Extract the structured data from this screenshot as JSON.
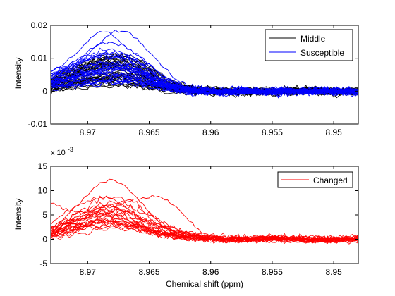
{
  "chart_data": [
    {
      "type": "line",
      "title": "",
      "xlabel": "",
      "ylabel": "Intensity",
      "exponent_label": "",
      "xlim": [
        8.973,
        8.948
      ],
      "ylim": [
        -0.01,
        0.02
      ],
      "x_reversed": true,
      "xticks": [
        8.97,
        8.965,
        8.96,
        8.955,
        8.95
      ],
      "xtick_labels": [
        "8.97",
        "8.965",
        "8.96",
        "8.955",
        "8.95"
      ],
      "yticks": [
        -0.01,
        0,
        0.01,
        0.02
      ],
      "ytick_labels": [
        "-0.01",
        "0",
        "0.01",
        "0.02"
      ],
      "legend": {
        "placement": "top-right",
        "entries": [
          "Middle",
          "Susceptible"
        ]
      },
      "series": [
        {
          "name": "Middle",
          "color": "#000000",
          "count": 40,
          "x": [
            8.973,
            8.972,
            8.971,
            8.97,
            8.969,
            8.968,
            8.967,
            8.966,
            8.965,
            8.964,
            8.963,
            8.962,
            8.961,
            8.96,
            8.959,
            8.958,
            8.957,
            8.956,
            8.955,
            8.954,
            8.953,
            8.952,
            8.951,
            8.95,
            8.949,
            8.948
          ],
          "values": [
            0.002,
            0.003,
            0.004,
            0.005,
            0.006,
            0.0065,
            0.006,
            0.005,
            0.0035,
            0.002,
            0.001,
            0.0005,
            0.0002,
            0.0,
            0.0,
            -0.0002,
            0.0,
            0.0,
            -0.0003,
            0.0,
            0.0002,
            0.0,
            0.0,
            -0.0002,
            0.0,
            0.0
          ]
        },
        {
          "name": "Susceptible",
          "color": "#0000ff",
          "count": 30,
          "x": [
            8.973,
            8.972,
            8.971,
            8.97,
            8.969,
            8.968,
            8.967,
            8.966,
            8.965,
            8.964,
            8.963,
            8.962,
            8.961,
            8.96,
            8.959,
            8.958,
            8.957,
            8.956,
            8.955,
            8.954,
            8.953,
            8.952,
            8.951,
            8.95,
            8.949,
            8.948
          ],
          "values": [
            0.003,
            0.004,
            0.005,
            0.006,
            0.007,
            0.0075,
            0.007,
            0.006,
            0.004,
            0.0025,
            0.0012,
            0.0005,
            0.0001,
            0.0,
            -0.0001,
            0.0,
            0.0001,
            0.0,
            -0.0002,
            0.0,
            0.0001,
            0.0,
            0.0,
            0.0,
            -0.0001,
            0.0
          ],
          "peak_curves": [
            {
              "x": [
                8.973,
                8.972,
                8.971,
                8.97,
                8.969,
                8.968,
                8.967,
                8.966,
                8.965,
                8.964,
                8.963,
                8.962,
                8.961,
                8.96,
                8.958,
                8.955,
                8.95,
                8.948
              ],
              "values": [
                0.006,
                0.008,
                0.011,
                0.015,
                0.0185,
                0.017,
                0.014,
                0.011,
                0.008,
                0.005,
                0.003,
                0.0015,
                0.0005,
                0.0,
                0.0,
                0.0,
                0.0,
                0.0
              ]
            },
            {
              "x": [
                8.973,
                8.972,
                8.971,
                8.97,
                8.969,
                8.968,
                8.967,
                8.966,
                8.965,
                8.964,
                8.963,
                8.962,
                8.961,
                8.96,
                8.958,
                8.955,
                8.95,
                8.948
              ],
              "values": [
                0.003,
                0.005,
                0.008,
                0.011,
                0.015,
                0.018,
                0.0185,
                0.016,
                0.012,
                0.008,
                0.004,
                0.002,
                0.0005,
                0.0,
                0.0,
                0.0,
                0.0,
                0.0
              ]
            },
            {
              "x": [
                8.973,
                8.972,
                8.971,
                8.97,
                8.969,
                8.968,
                8.967,
                8.966,
                8.965,
                8.964,
                8.963,
                8.962,
                8.961,
                8.96,
                8.958,
                8.955,
                8.95,
                8.948
              ],
              "values": [
                0.004,
                0.006,
                0.009,
                0.012,
                0.0145,
                0.015,
                0.0135,
                0.011,
                0.008,
                0.005,
                0.0025,
                0.001,
                0.0003,
                0.0,
                0.0,
                0.0,
                0.0,
                0.0
              ]
            }
          ]
        }
      ]
    },
    {
      "type": "line",
      "title": "",
      "xlabel": "Chemical shift (ppm)",
      "ylabel": "Intensity",
      "exponent_label": "x 10",
      "exponent_power": "-3",
      "xlim": [
        8.973,
        8.948
      ],
      "ylim": [
        -5,
        15
      ],
      "x_reversed": true,
      "xticks": [
        8.97,
        8.965,
        8.96,
        8.955,
        8.95
      ],
      "xtick_labels": [
        "8.97",
        "8.965",
        "8.96",
        "8.955",
        "8.95"
      ],
      "yticks": [
        -5,
        0,
        5,
        10,
        15
      ],
      "ytick_labels": [
        "-5",
        "0",
        "5",
        "10",
        "15"
      ],
      "legend": {
        "placement": "top-right",
        "entries": [
          "Changed"
        ]
      },
      "series": [
        {
          "name": "Changed",
          "color": "#ff0000",
          "count": 25,
          "x": [
            8.973,
            8.972,
            8.971,
            8.97,
            8.969,
            8.968,
            8.967,
            8.966,
            8.965,
            8.964,
            8.963,
            8.962,
            8.961,
            8.96,
            8.959,
            8.958,
            8.957,
            8.956,
            8.955,
            8.954,
            8.953,
            8.952,
            8.951,
            8.95,
            8.949,
            8.948
          ],
          "values": [
            1.5,
            2.5,
            3.5,
            4.5,
            5.0,
            5.0,
            4.5,
            3.5,
            2.5,
            1.5,
            1.0,
            0.5,
            0.3,
            0.0,
            0.0,
            -0.2,
            0.0,
            0.0,
            0.2,
            0.0,
            0.0,
            -0.2,
            0.0,
            -0.3,
            0.0,
            0.0
          ],
          "peak_curves": [
            {
              "x": [
                8.973,
                8.972,
                8.971,
                8.97,
                8.969,
                8.968,
                8.967,
                8.966,
                8.965,
                8.964,
                8.963,
                8.962,
                8.961,
                8.96,
                8.958,
                8.955,
                8.95,
                8.948
              ],
              "values": [
                2.0,
                4.0,
                6.5,
                9.0,
                11.5,
                12.3,
                11.0,
                8.5,
                5.5,
                3.0,
                1.5,
                0.5,
                0.2,
                0.0,
                0.0,
                0.0,
                0.0,
                0.0
              ]
            },
            {
              "x": [
                8.973,
                8.972,
                8.971,
                8.97,
                8.969,
                8.968,
                8.967,
                8.966,
                8.965,
                8.964,
                8.963,
                8.962,
                8.961,
                8.96,
                8.958,
                8.955,
                8.95,
                8.948
              ],
              "values": [
                0.5,
                1.0,
                2.0,
                3.0,
                4.5,
                6.0,
                7.5,
                8.5,
                8.8,
                8.5,
                7.0,
                4.5,
                2.0,
                0.5,
                0.0,
                0.0,
                0.0,
                0.0
              ]
            },
            {
              "x": [
                8.973,
                8.972,
                8.971,
                8.97,
                8.969,
                8.968,
                8.967,
                8.966,
                8.965,
                8.964,
                8.963,
                8.962,
                8.961,
                8.96,
                8.958,
                8.955,
                8.95,
                8.948
              ],
              "values": [
                7.5,
                6.5,
                5.5,
                5.5,
                6.5,
                7.0,
                6.0,
                4.5,
                3.0,
                2.0,
                1.0,
                0.5,
                0.2,
                0.0,
                0.0,
                0.0,
                0.0,
                0.0
              ]
            }
          ]
        }
      ]
    }
  ]
}
